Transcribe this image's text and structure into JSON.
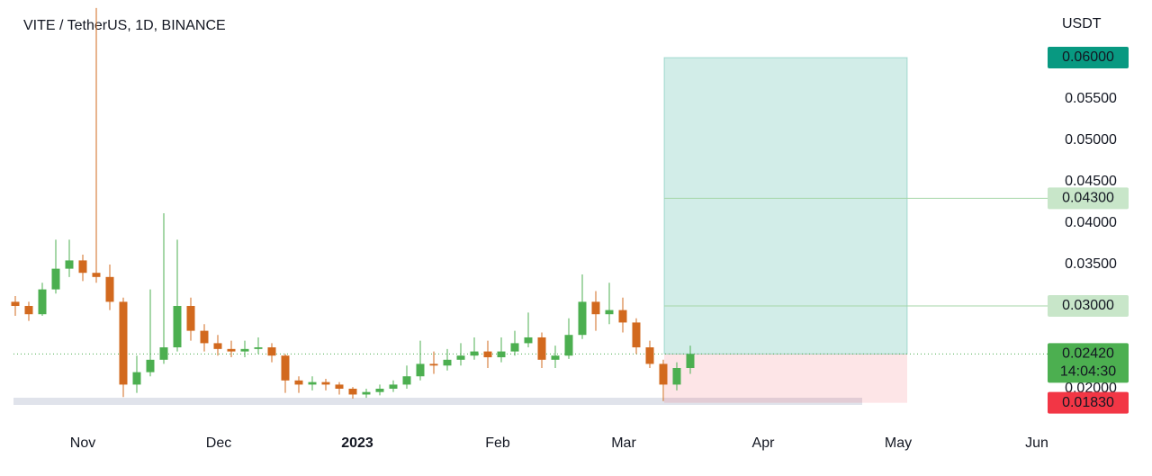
{
  "chart_data": {
    "type": "candlestick",
    "title": "VITE / TetherUS, 1D, BINANCE",
    "y_unit": "USDT",
    "x_labels": [
      "Nov",
      "Dec",
      "2023",
      "Feb",
      "Mar",
      "Apr",
      "May",
      "Jun"
    ],
    "up_color": "#4caf50",
    "down_color": "#d2691e",
    "ylim": [
      0.01587,
      0.06696
    ],
    "yticks": [
      {
        "value": 0.02,
        "label": "0.02000"
      },
      {
        "value": 0.035,
        "label": "0.03500"
      },
      {
        "value": 0.04,
        "label": "0.04000"
      },
      {
        "value": 0.045,
        "label": "0.04500"
      },
      {
        "value": 0.05,
        "label": "0.05000"
      },
      {
        "value": 0.055,
        "label": "0.05500"
      }
    ],
    "ohlc": [
      [
        0.0305,
        0.0312,
        0.0288,
        0.03
      ],
      [
        0.03,
        0.0305,
        0.0282,
        0.029
      ],
      [
        0.029,
        0.0328,
        0.0288,
        0.032
      ],
      [
        0.032,
        0.038,
        0.0315,
        0.0345
      ],
      [
        0.0345,
        0.038,
        0.0335,
        0.0355
      ],
      [
        0.0355,
        0.0362,
        0.033,
        0.034
      ],
      [
        0.034,
        0.066,
        0.0328,
        0.0335
      ],
      [
        0.0335,
        0.035,
        0.0295,
        0.0305
      ],
      [
        0.0305,
        0.031,
        0.019,
        0.0205
      ],
      [
        0.0205,
        0.024,
        0.0195,
        0.022
      ],
      [
        0.022,
        0.032,
        0.0215,
        0.0235
      ],
      [
        0.0235,
        0.0412,
        0.023,
        0.025
      ],
      [
        0.025,
        0.038,
        0.0245,
        0.03
      ],
      [
        0.03,
        0.031,
        0.0258,
        0.027
      ],
      [
        0.027,
        0.0278,
        0.0245,
        0.0255
      ],
      [
        0.0255,
        0.0265,
        0.024,
        0.0248
      ],
      [
        0.0248,
        0.0258,
        0.0238,
        0.0245
      ],
      [
        0.0245,
        0.0258,
        0.0238,
        0.0248
      ],
      [
        0.0248,
        0.0262,
        0.0242,
        0.025
      ],
      [
        0.025,
        0.0255,
        0.0232,
        0.024
      ],
      [
        0.024,
        0.0242,
        0.0195,
        0.021
      ],
      [
        0.021,
        0.0215,
        0.0195,
        0.0205
      ],
      [
        0.0205,
        0.0215,
        0.0198,
        0.0208
      ],
      [
        0.0208,
        0.0212,
        0.0198,
        0.0205
      ],
      [
        0.0205,
        0.0208,
        0.0193,
        0.02
      ],
      [
        0.02,
        0.0202,
        0.0188,
        0.0193
      ],
      [
        0.0193,
        0.02,
        0.0189,
        0.0196
      ],
      [
        0.0196,
        0.0205,
        0.0192,
        0.02
      ],
      [
        0.02,
        0.021,
        0.0196,
        0.0205
      ],
      [
        0.0205,
        0.0228,
        0.02,
        0.0215
      ],
      [
        0.0215,
        0.0258,
        0.021,
        0.023
      ],
      [
        0.023,
        0.0245,
        0.0218,
        0.0228
      ],
      [
        0.0228,
        0.0248,
        0.0222,
        0.0235
      ],
      [
        0.0235,
        0.0255,
        0.0228,
        0.024
      ],
      [
        0.024,
        0.0262,
        0.0235,
        0.0245
      ],
      [
        0.0245,
        0.0258,
        0.0225,
        0.0238
      ],
      [
        0.0238,
        0.0262,
        0.0232,
        0.0245
      ],
      [
        0.0245,
        0.027,
        0.024,
        0.0255
      ],
      [
        0.0255,
        0.0292,
        0.025,
        0.0262
      ],
      [
        0.0262,
        0.0268,
        0.0225,
        0.0235
      ],
      [
        0.0235,
        0.0252,
        0.0225,
        0.024
      ],
      [
        0.024,
        0.0285,
        0.0236,
        0.0265
      ],
      [
        0.0265,
        0.0338,
        0.026,
        0.0305
      ],
      [
        0.0305,
        0.0318,
        0.027,
        0.029
      ],
      [
        0.029,
        0.0328,
        0.0278,
        0.0295
      ],
      [
        0.0295,
        0.031,
        0.0268,
        0.028
      ],
      [
        0.028,
        0.0285,
        0.0242,
        0.025
      ],
      [
        0.025,
        0.0258,
        0.0225,
        0.023
      ],
      [
        0.023,
        0.0235,
        0.0185,
        0.0205
      ],
      [
        0.0205,
        0.0232,
        0.0198,
        0.0225
      ],
      [
        0.0225,
        0.0252,
        0.0218,
        0.0242
      ]
    ],
    "markers": [
      {
        "value": 0.06,
        "label": "0.06000",
        "color": "#089981"
      },
      {
        "value": 0.043,
        "label": "0.04300",
        "color": "#c8e6c9"
      },
      {
        "value": 0.03,
        "label": "0.03000",
        "color": "#c8e6c9"
      },
      {
        "value": 0.0242,
        "label": "0.02420",
        "color": "#4caf50"
      },
      {
        "value": 0.0183,
        "label": "0.01830",
        "color": "#f23645"
      }
    ],
    "countdown": "14:04:30"
  }
}
